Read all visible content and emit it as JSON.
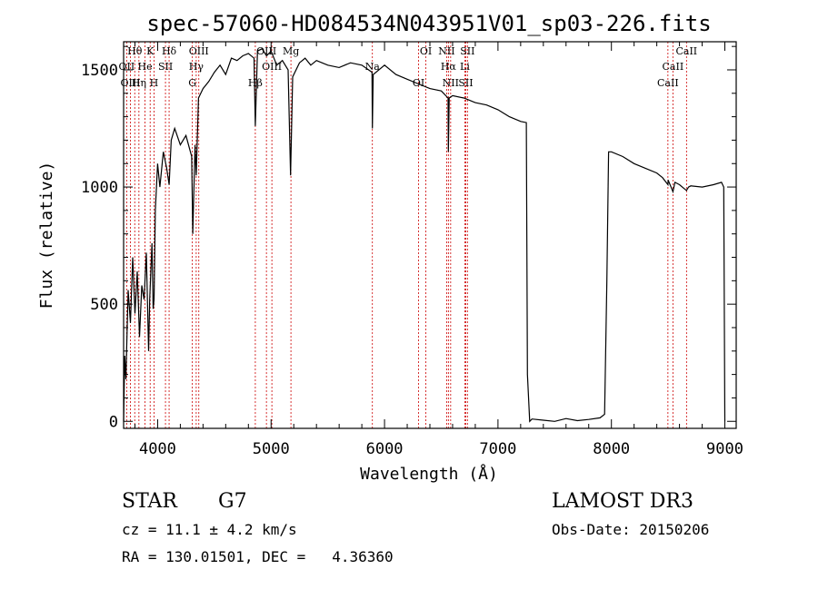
{
  "chart_data": {
    "type": "line",
    "title": "spec-57060-HD084534N043951V01_sp03-226.fits",
    "xlabel": "Wavelength (Å)",
    "ylabel": "Flux (relative)",
    "xlim": [
      3700,
      9100
    ],
    "ylim": [
      -30,
      1620
    ],
    "x_ticks": [
      4000,
      5000,
      6000,
      7000,
      8000,
      9000
    ],
    "x_tick_labels": [
      "4000",
      "5000",
      "6000",
      "7000",
      "8000",
      "9000"
    ],
    "y_ticks": [
      0,
      500,
      1000,
      1500
    ],
    "y_tick_labels": [
      "0",
      "500",
      "1000",
      "1500"
    ],
    "grid": false,
    "series": [
      {
        "name": "spectrum",
        "points": [
          [
            3700,
            0
          ],
          [
            3710,
            280
          ],
          [
            3720,
            180
          ],
          [
            3740,
            560
          ],
          [
            3760,
            420
          ],
          [
            3780,
            700
          ],
          [
            3800,
            460
          ],
          [
            3820,
            640
          ],
          [
            3840,
            360
          ],
          [
            3860,
            580
          ],
          [
            3880,
            520
          ],
          [
            3900,
            720
          ],
          [
            3920,
            300
          ],
          [
            3930,
            520
          ],
          [
            3950,
            760
          ],
          [
            3960,
            480
          ],
          [
            3968,
            520
          ],
          [
            3980,
            900
          ],
          [
            4000,
            1100
          ],
          [
            4020,
            1000
          ],
          [
            4050,
            1150
          ],
          [
            4080,
            1080
          ],
          [
            4101,
            1010
          ],
          [
            4120,
            1200
          ],
          [
            4150,
            1250
          ],
          [
            4200,
            1180
          ],
          [
            4250,
            1220
          ],
          [
            4300,
            1130
          ],
          [
            4310,
            800
          ],
          [
            4330,
            1180
          ],
          [
            4340,
            1050
          ],
          [
            4360,
            1380
          ],
          [
            4400,
            1420
          ],
          [
            4450,
            1450
          ],
          [
            4500,
            1490
          ],
          [
            4550,
            1520
          ],
          [
            4600,
            1480
          ],
          [
            4650,
            1550
          ],
          [
            4700,
            1540
          ],
          [
            4750,
            1560
          ],
          [
            4800,
            1570
          ],
          [
            4850,
            1550
          ],
          [
            4861,
            1260
          ],
          [
            4880,
            1580
          ],
          [
            4920,
            1590
          ],
          [
            4960,
            1560
          ],
          [
            5000,
            1580
          ],
          [
            5050,
            1520
          ],
          [
            5100,
            1540
          ],
          [
            5150,
            1500
          ],
          [
            5172,
            1050
          ],
          [
            5190,
            1470
          ],
          [
            5250,
            1530
          ],
          [
            5300,
            1550
          ],
          [
            5350,
            1520
          ],
          [
            5400,
            1540
          ],
          [
            5500,
            1520
          ],
          [
            5600,
            1510
          ],
          [
            5700,
            1530
          ],
          [
            5800,
            1520
          ],
          [
            5890,
            1490
          ],
          [
            5893,
            1250
          ],
          [
            5900,
            1480
          ],
          [
            6000,
            1520
          ],
          [
            6100,
            1480
          ],
          [
            6200,
            1460
          ],
          [
            6300,
            1440
          ],
          [
            6400,
            1420
          ],
          [
            6500,
            1410
          ],
          [
            6560,
            1380
          ],
          [
            6563,
            1150
          ],
          [
            6570,
            1380
          ],
          [
            6600,
            1390
          ],
          [
            6700,
            1380
          ],
          [
            6800,
            1360
          ],
          [
            6900,
            1350
          ],
          [
            7000,
            1330
          ],
          [
            7100,
            1300
          ],
          [
            7200,
            1280
          ],
          [
            7250,
            1275
          ],
          [
            7260,
            200
          ],
          [
            7280,
            0
          ],
          [
            7300,
            10
          ],
          [
            7400,
            5
          ],
          [
            7500,
            0
          ],
          [
            7600,
            12
          ],
          [
            7700,
            3
          ],
          [
            7800,
            8
          ],
          [
            7900,
            15
          ],
          [
            7940,
            30
          ],
          [
            7960,
            600
          ],
          [
            7975,
            1150
          ],
          [
            8000,
            1150
          ],
          [
            8100,
            1130
          ],
          [
            8200,
            1100
          ],
          [
            8300,
            1080
          ],
          [
            8400,
            1060
          ],
          [
            8450,
            1040
          ],
          [
            8498,
            1010
          ],
          [
            8500,
            1030
          ],
          [
            8542,
            980
          ],
          [
            8560,
            1020
          ],
          [
            8600,
            1010
          ],
          [
            8662,
            985
          ],
          [
            8680,
            1000
          ],
          [
            8700,
            1005
          ],
          [
            8800,
            1000
          ],
          [
            8900,
            1010
          ],
          [
            8970,
            1020
          ],
          [
            8990,
            1000
          ],
          [
            9000,
            0
          ]
        ]
      }
    ],
    "line_labels": [
      {
        "label": "Hθ",
        "x": 3798
      },
      {
        "label": "OII",
        "x": 3727
      },
      {
        "label": "OIII",
        "x": 3760
      },
      {
        "label": "K",
        "x": 3934
      },
      {
        "label": "He",
        "x": 3889
      },
      {
        "label": "Hη",
        "x": 3835
      },
      {
        "label": "Hδ",
        "x": 4101
      },
      {
        "label": "SII",
        "x": 4069
      },
      {
        "label": "H",
        "x": 3968
      },
      {
        "label": "OIII",
        "x": 4363
      },
      {
        "label": "Hγ",
        "x": 4340
      },
      {
        "label": "G",
        "x": 4306
      },
      {
        "label": "OIII",
        "x": 4959
      },
      {
        "label": "OIII",
        "x": 5007
      },
      {
        "label": "Hβ",
        "x": 4861
      },
      {
        "label": "Mg",
        "x": 5175
      },
      {
        "label": "Na",
        "x": 5893
      },
      {
        "label": "OI",
        "x": 6300
      },
      {
        "label": "OI",
        "x": 6364
      },
      {
        "label": "Hα",
        "x": 6563
      },
      {
        "label": "SII",
        "x": 6716
      },
      {
        "label": "NII",
        "x": 6548
      },
      {
        "label": "Li",
        "x": 6708
      },
      {
        "label": "NII",
        "x": 6583
      },
      {
        "label": "SII",
        "x": 6731
      },
      {
        "label": "CaII",
        "x": 8542
      },
      {
        "label": "CaII",
        "x": 8498
      },
      {
        "label": "CaII",
        "x": 8662
      }
    ],
    "line_markers": [
      3727,
      3760,
      3798,
      3835,
      3889,
      3934,
      3968,
      4069,
      4101,
      4306,
      4340,
      4363,
      4861,
      4959,
      5007,
      5175,
      5893,
      6300,
      6364,
      6548,
      6563,
      6583,
      6708,
      6716,
      6731,
      8498,
      8542,
      8662
    ]
  },
  "info": {
    "object_class": "STAR",
    "subclass": "G7",
    "cz": "cz = 11.1 ± 4.2 km/s",
    "radec": "RA = 130.01501, DEC =   4.36360",
    "survey": "LAMOST DR3",
    "obs_date": "Obs-Date: 20150206"
  },
  "colors": {
    "line": "#000000",
    "marker": "#cc0000",
    "background": "#ffffff"
  }
}
